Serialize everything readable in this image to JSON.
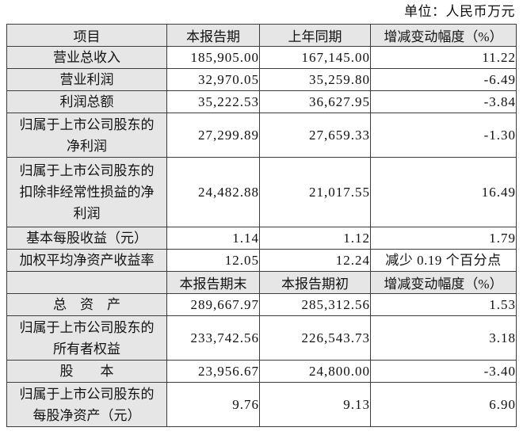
{
  "unit_label": "单位：人民币万元",
  "colors": {
    "header_bg": "#e6e6e6",
    "border": "#3c3c3c",
    "text": "#111111",
    "page_bg": "#ffffff"
  },
  "table": {
    "period_header": {
      "item": "项目",
      "current": "本报告期",
      "prior": "上年同期",
      "change": "增减变动幅度（%）"
    },
    "income_rows": [
      {
        "item": "营业总收入",
        "current": "185,905.00",
        "prior": "167,145.00",
        "change": "11.22"
      },
      {
        "item": "营业利润",
        "current": "32,970.05",
        "prior": "35,259.80",
        "change": "-6.49"
      },
      {
        "item": "利润总额",
        "current": "35,222.53",
        "prior": "36,627.95",
        "change": "-3.84"
      },
      {
        "item": "归属于上市公司股东的\n净利润",
        "current": "27,299.89",
        "prior": "27,659.33",
        "change": "-1.30"
      },
      {
        "item": "归属于上市公司股东的\n扣除非经常性损益的净\n利润",
        "current": "24,482.88",
        "prior": "21,017.55",
        "change": "16.49"
      },
      {
        "item": "基本每股收益（元）",
        "current": "1.14",
        "prior": "1.12",
        "change": "1.79"
      },
      {
        "item": "加权平均净资产收益率",
        "current": "12.05",
        "prior": "12.24",
        "change": "减少 0.19 个百分点"
      }
    ],
    "balance_header": {
      "item": "",
      "current": "本报告期末",
      "prior": "本报告期初",
      "change": "增减变动幅度（%）"
    },
    "balance_rows": [
      {
        "item": "总　资　产",
        "current": "289,667.97",
        "prior": "285,312.56",
        "change": "1.53"
      },
      {
        "item": "归属于上市公司股东的\n所有者权益",
        "current": "233,742.56",
        "prior": "226,543.73",
        "change": "3.18"
      },
      {
        "item": "股　　本",
        "current": "23,956.67",
        "prior": "24,800.00",
        "change": "-3.40"
      },
      {
        "item": "归属于上市公司股东的\n每股净资产（元）",
        "current": "9.76",
        "prior": "9.13",
        "change": "6.90"
      }
    ]
  }
}
